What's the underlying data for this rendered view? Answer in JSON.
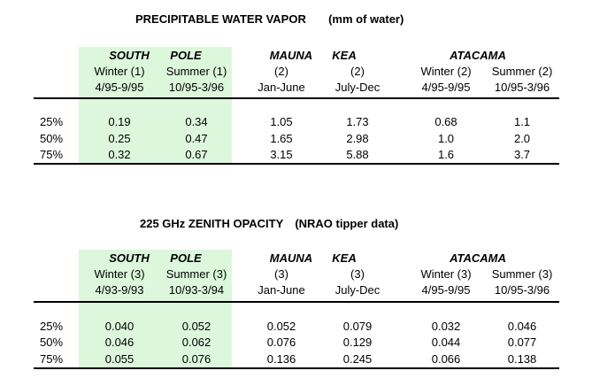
{
  "colors": {
    "south_pole_highlight": "#dcf7dc",
    "text": "#000000"
  },
  "pwv": {
    "title": "PRECIPITABLE WATER VAPOR",
    "units": "(mm of water)",
    "site_south_a": "SOUTH",
    "site_south_b": "POLE",
    "site_mauna_a": "MAUNA",
    "site_mauna_b": "KEA",
    "site_atacama": "ATACAMA",
    "columns": [
      {
        "season": "Winter (1)",
        "dates": "4/95-9/95"
      },
      {
        "season": "Summer (1)",
        "dates": "10/95-3/96"
      },
      {
        "season": "(2)",
        "dates": "Jan-June"
      },
      {
        "season": "(2)",
        "dates": "July-Dec"
      },
      {
        "season": "Winter (2)",
        "dates": "4/95-9/95"
      },
      {
        "season": "Summer (2)",
        "dates": "10/95-3/96"
      }
    ],
    "rows": [
      {
        "label": "25%",
        "values": [
          "0.19",
          "0.34",
          "1.05",
          "1.73",
          "0.68",
          "1.1"
        ]
      },
      {
        "label": "50%",
        "values": [
          "0.25",
          "0.47",
          "1.65",
          "2.98",
          "1.0",
          "2.0"
        ]
      },
      {
        "label": "75%",
        "values": [
          "0.32",
          "0.67",
          "3.15",
          "5.88",
          "1.6",
          "3.7"
        ]
      }
    ]
  },
  "opacity": {
    "title": "225 GHz ZENITH OPACITY",
    "units": "(NRAO tipper data)",
    "site_south_a": "SOUTH",
    "site_south_b": "POLE",
    "site_mauna_a": "MAUNA",
    "site_mauna_b": "KEA",
    "site_atacama": "ATACAMA",
    "columns": [
      {
        "season": "Winter (3)",
        "dates": "4/93-9/93"
      },
      {
        "season": "Summer (3)",
        "dates": "10/93-3/94"
      },
      {
        "season": "(3)",
        "dates": "Jan-June"
      },
      {
        "season": "(3)",
        "dates": "July-Dec"
      },
      {
        "season": "Winter (3)",
        "dates": "4/95-9/95"
      },
      {
        "season": "Summer (3)",
        "dates": "10/95-3/96"
      }
    ],
    "rows": [
      {
        "label": "25%",
        "values": [
          "0.040",
          "0.052",
          "0.052",
          "0.079",
          "0.032",
          "0.046"
        ]
      },
      {
        "label": "50%",
        "values": [
          "0.046",
          "0.062",
          "0.076",
          "0.129",
          "0.044",
          "0.077"
        ]
      },
      {
        "label": "75%",
        "values": [
          "0.055",
          "0.076",
          "0.136",
          "0.245",
          "0.066",
          "0.138"
        ]
      }
    ]
  }
}
